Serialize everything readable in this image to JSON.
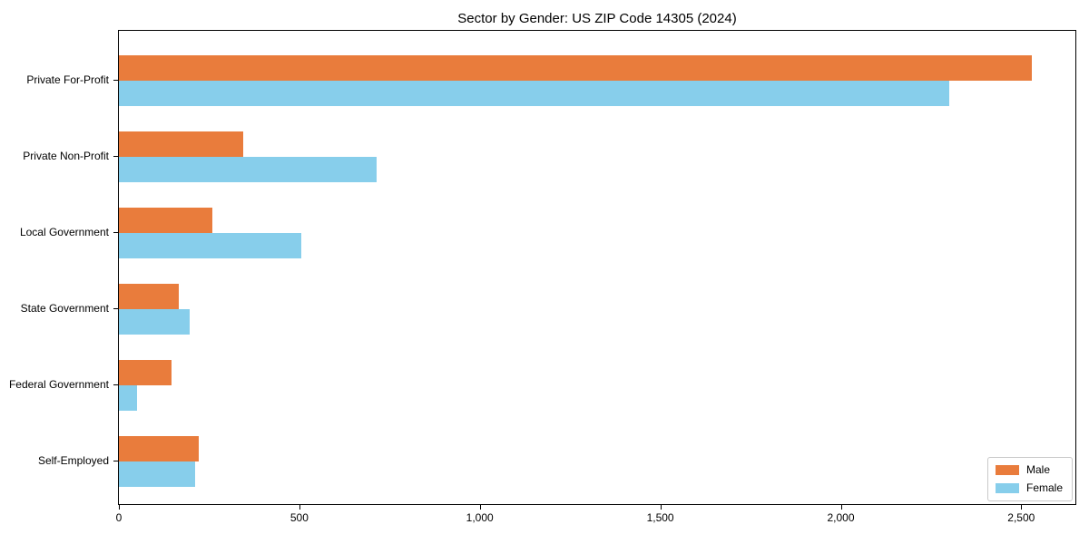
{
  "title": "Sector by Gender: US ZIP Code 14305 (2024)",
  "chart_data": {
    "type": "bar",
    "orientation": "horizontal",
    "title": "Sector by Gender: US ZIP Code 14305 (2024)",
    "categories": [
      "Private For-Profit",
      "Private Non-Profit",
      "Local Government",
      "State Government",
      "Federal Government",
      "Self-Employed"
    ],
    "series": [
      {
        "name": "Male",
        "color": "#e97c3c",
        "values": [
          2530,
          345,
          260,
          165,
          145,
          220
        ]
      },
      {
        "name": "Female",
        "color": "#87ceeb",
        "values": [
          2300,
          715,
          505,
          195,
          50,
          210
        ]
      }
    ],
    "xlabel": "",
    "ylabel": "",
    "xlim": [
      0,
      2650
    ],
    "xticks": [
      0,
      500,
      1000,
      1500,
      2000,
      2500
    ],
    "xtick_labels": [
      "0",
      "500",
      "1,000",
      "1,500",
      "2,000",
      "2,500"
    ],
    "grid": false,
    "legend": {
      "position": "lower right",
      "entries": [
        "Male",
        "Female"
      ]
    }
  }
}
